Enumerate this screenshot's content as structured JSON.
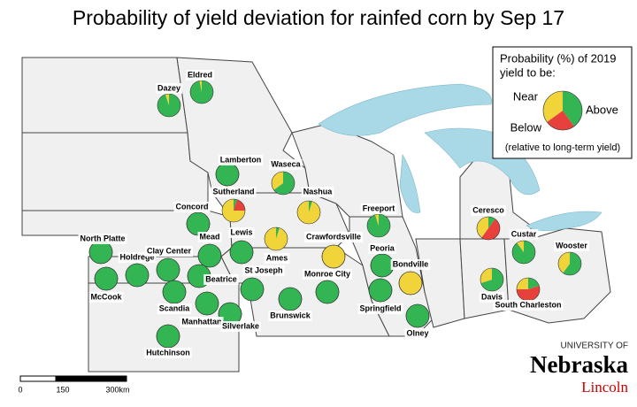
{
  "title": "Probability of yield deviation for rainfed corn by Sep 17",
  "colors": {
    "above": "#34b554",
    "near": "#f0d43a",
    "below": "#e8413c"
  },
  "legend": {
    "lines": [
      "Probability (%) of 2019",
      "yield to be:"
    ],
    "near": "Near",
    "below": "Below",
    "above": "Above",
    "note": "(relative to long-term yield)",
    "example": {
      "above": 40,
      "below": 25,
      "near": 35
    }
  },
  "sites": [
    {
      "name": "Dazey",
      "above": 95,
      "below": 0,
      "near": 5
    },
    {
      "name": "Eldred",
      "above": 97,
      "below": 0,
      "near": 3
    },
    {
      "name": "Lamberton",
      "above": 100,
      "below": 0,
      "near": 0
    },
    {
      "name": "Waseca",
      "above": 65,
      "below": 0,
      "near": 35
    },
    {
      "name": "Sutherland",
      "above": 5,
      "below": 20,
      "near": 75
    },
    {
      "name": "Nashua",
      "above": 5,
      "below": 0,
      "near": 95
    },
    {
      "name": "Concord",
      "above": 100,
      "below": 0,
      "near": 0
    },
    {
      "name": "Freeport",
      "above": 95,
      "below": 0,
      "near": 5
    },
    {
      "name": "Ceresco",
      "above": 10,
      "below": 50,
      "near": 40
    },
    {
      "name": "Custar",
      "above": 90,
      "below": 0,
      "near": 10
    },
    {
      "name": "Lewis",
      "above": 100,
      "below": 0,
      "near": 0
    },
    {
      "name": "Ames",
      "above": 5,
      "below": 0,
      "near": 95
    },
    {
      "name": "Crawfordsville",
      "above": 0,
      "below": 0,
      "near": 100
    },
    {
      "name": "Mead",
      "above": 100,
      "below": 0,
      "near": 0
    },
    {
      "name": "North Platte",
      "above": 100,
      "below": 0,
      "near": 0
    },
    {
      "name": "Holdrege",
      "above": 100,
      "below": 0,
      "near": 0
    },
    {
      "name": "Clay Center",
      "above": 100,
      "below": 0,
      "near": 0
    },
    {
      "name": "Peoria",
      "above": 100,
      "below": 0,
      "near": 0
    },
    {
      "name": "Bondville",
      "above": 0,
      "below": 0,
      "near": 100
    },
    {
      "name": "Wooster",
      "above": 60,
      "below": 0,
      "near": 40
    },
    {
      "name": "St Joseph",
      "above": 100,
      "below": 0,
      "near": 0
    },
    {
      "name": "Beatrice",
      "above": 100,
      "below": 0,
      "near": 0
    },
    {
      "name": "McCook",
      "above": 100,
      "below": 0,
      "near": 0
    },
    {
      "name": "Scandia",
      "above": 100,
      "below": 0,
      "near": 0
    },
    {
      "name": "Manhattan",
      "above": 100,
      "below": 0,
      "near": 0
    },
    {
      "name": "Silverlake",
      "above": 100,
      "below": 0,
      "near": 0
    },
    {
      "name": "Monroe City",
      "above": 100,
      "below": 0,
      "near": 0
    },
    {
      "name": "Brunswick",
      "above": 100,
      "below": 0,
      "near": 0
    },
    {
      "name": "Springfield",
      "above": 100,
      "below": 0,
      "near": 0
    },
    {
      "name": "Davis",
      "above": 70,
      "below": 0,
      "near": 30
    },
    {
      "name": "South Charleston",
      "above": 20,
      "below": 55,
      "near": 25
    },
    {
      "name": "Olney",
      "above": 100,
      "below": 0,
      "near": 0
    },
    {
      "name": "Hutchinson",
      "above": 100,
      "below": 0,
      "near": 0
    }
  ],
  "scale": [
    "0",
    "150",
    "300km"
  ],
  "logo": {
    "top": "UNIVERSITY OF",
    "name": "Nebraska",
    "city": "Lincoln"
  }
}
